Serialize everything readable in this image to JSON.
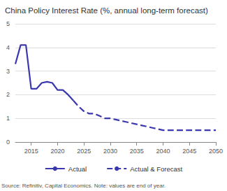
{
  "chart_data": {
    "type": "line",
    "title": "China Policy Interest Rate (%, annual long-term forecast)",
    "source": "Source: Refinitiv, Capital Economics. Note: values are end of year.",
    "x": [
      2012,
      2013,
      2014,
      2015,
      2016,
      2017,
      2018,
      2019,
      2020,
      2021,
      2022,
      2023,
      2024,
      2025,
      2026,
      2027,
      2028,
      2029,
      2030,
      2031,
      2032,
      2033,
      2034,
      2035,
      2036,
      2037,
      2038,
      2039,
      2040,
      2041,
      2042,
      2043,
      2044,
      2045,
      2046,
      2047,
      2048,
      2049,
      2050
    ],
    "series": [
      {
        "name": "Actual",
        "color": "#3b38ad",
        "line_style": "solid",
        "values": [
          3.3,
          4.1,
          4.1,
          2.25,
          2.25,
          2.5,
          2.55,
          2.5,
          2.2,
          2.2,
          2.0,
          1.75,
          null,
          null,
          null,
          null,
          null,
          null,
          null,
          null,
          null,
          null,
          null,
          null,
          null,
          null,
          null,
          null,
          null,
          null,
          null,
          null,
          null,
          null,
          null,
          null,
          null,
          null,
          null
        ]
      },
      {
        "name": "Actual & Forecast",
        "color": "#3b38ad",
        "line_style": "dashed",
        "values": [
          null,
          null,
          null,
          null,
          null,
          null,
          null,
          null,
          null,
          null,
          null,
          1.75,
          1.5,
          1.3,
          1.2,
          1.2,
          1.1,
          1.0,
          1.0,
          0.95,
          0.9,
          0.85,
          0.8,
          0.75,
          0.7,
          0.65,
          0.6,
          0.55,
          0.5,
          0.5,
          0.5,
          0.5,
          0.5,
          0.5,
          0.5,
          0.5,
          0.5,
          0.5,
          0.5
        ]
      }
    ],
    "xlim": [
      2012,
      2050
    ],
    "xticks": [
      2015,
      2020,
      2025,
      2030,
      2035,
      2040,
      2045,
      2050
    ],
    "ylim": [
      0,
      5
    ],
    "yticks": [
      0,
      1,
      2,
      3,
      4,
      5
    ],
    "grid": true,
    "legend": "bottom"
  }
}
